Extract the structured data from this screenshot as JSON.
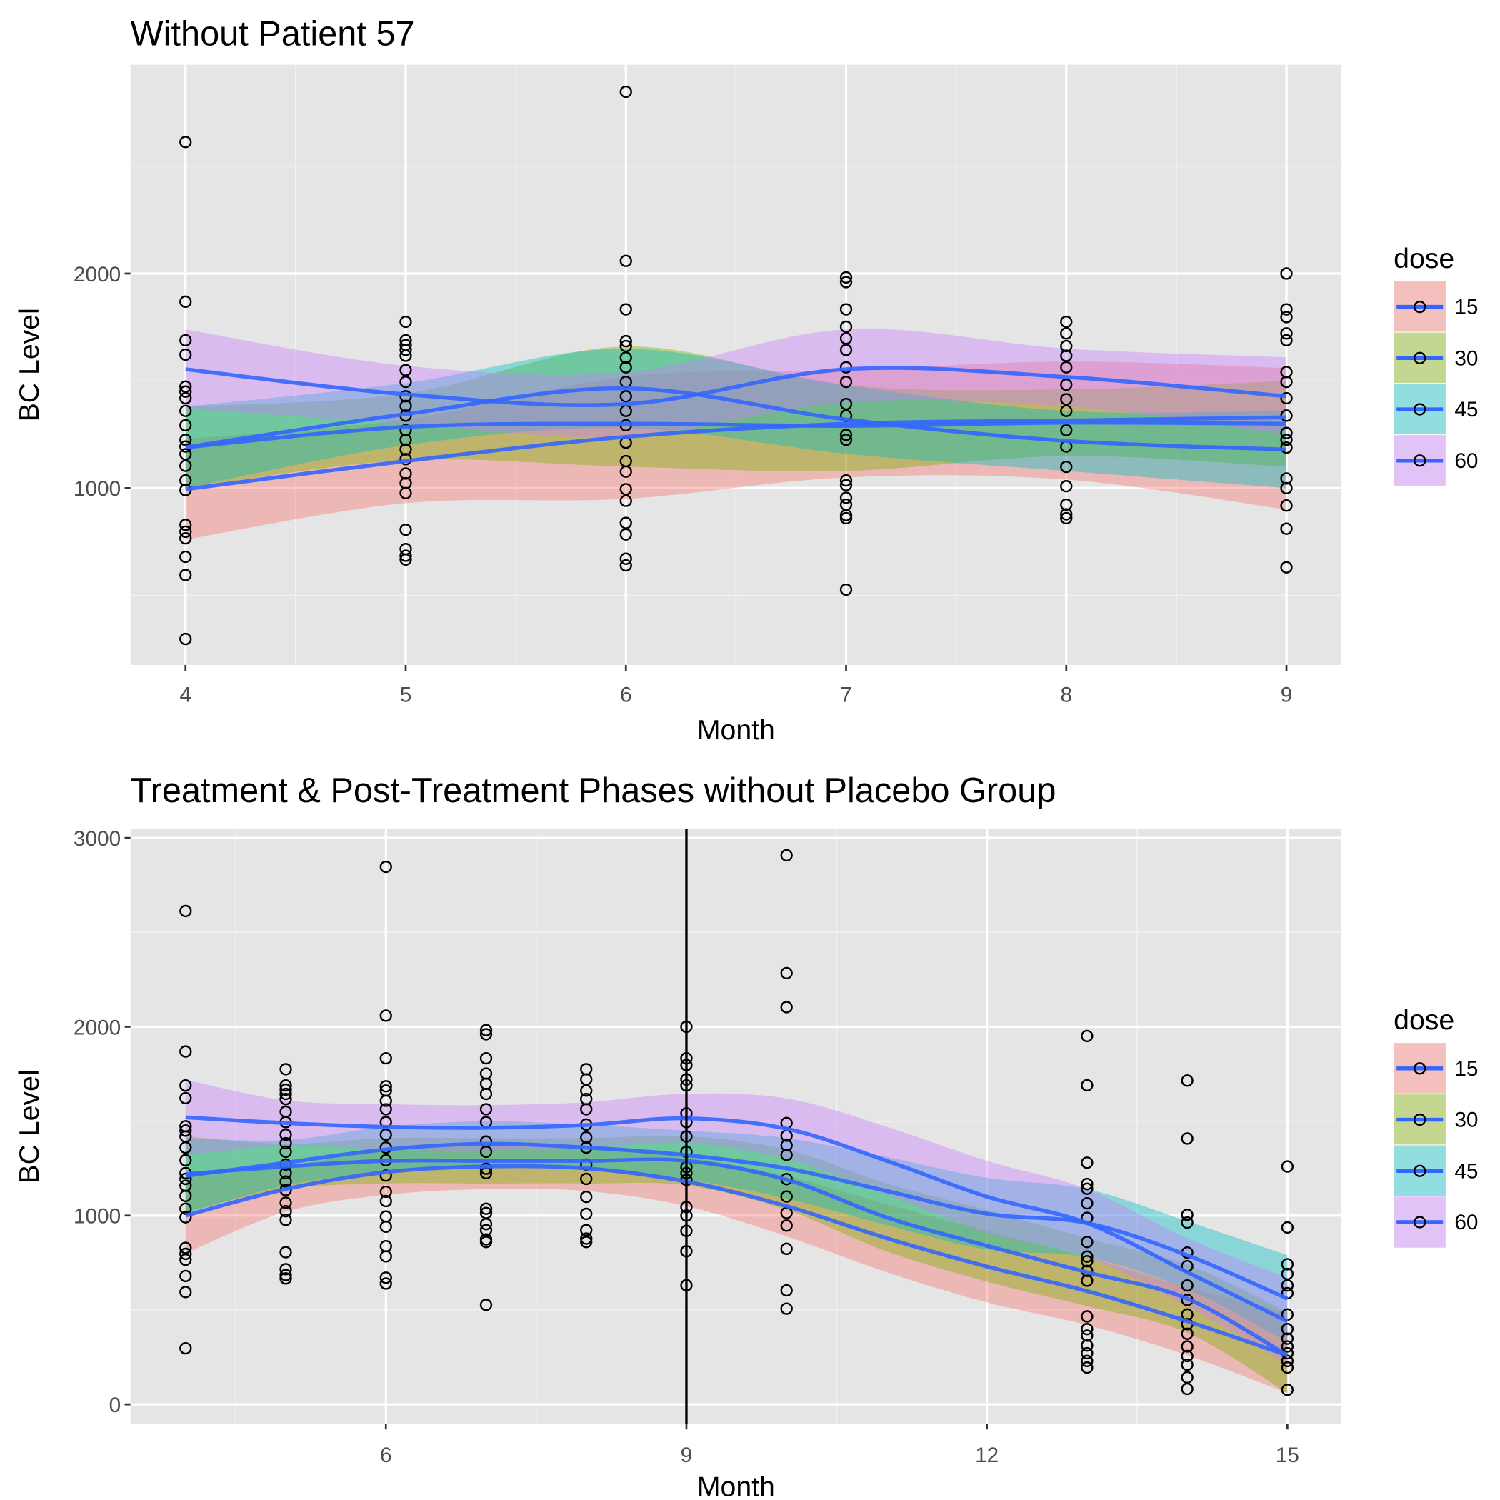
{
  "chart_data": [
    {
      "type": "scatter-smooth",
      "title": "Without Patient 57",
      "x_label": "Month",
      "y_label": "BC Level",
      "legend_title": "dose",
      "xlim": [
        3.75,
        9.25
      ],
      "xticks": [
        4,
        5,
        6,
        7,
        8,
        9
      ],
      "ylim": [
        176,
        2973
      ],
      "yticks": [
        1000,
        2000
      ],
      "grid": true,
      "points": [
        {
          "x": 4,
          "y": [
            2613,
            1869,
            1689,
            1622,
            1473,
            1450,
            1419,
            1360,
            1293,
            1225,
            1194,
            1158,
            1104,
            1036,
            991,
            829,
            797,
            766,
            680,
            595,
            297
          ]
        },
        {
          "x": 5,
          "y": [
            1775,
            1689,
            1667,
            1644,
            1617,
            1550,
            1495,
            1428,
            1383,
            1338,
            1270,
            1225,
            1180,
            1135,
            1068,
            1023,
            977,
            806,
            716,
            685,
            667
          ]
        },
        {
          "x": 6,
          "y": [
            2847,
            2059,
            1833,
            1685,
            1662,
            1608,
            1563,
            1495,
            1428,
            1360,
            1293,
            1212,
            1126,
            1077,
            995,
            941,
            838,
            784,
            671,
            640
          ]
        },
        {
          "x": 7,
          "y": [
            1982,
            1960,
            1833,
            1752,
            1698,
            1644,
            1563,
            1495,
            1392,
            1338,
            1248,
            1225,
            1036,
            1014,
            955,
            923,
            874,
            860,
            527
          ]
        },
        {
          "x": 8,
          "y": [
            1775,
            1721,
            1662,
            1617,
            1563,
            1482,
            1414,
            1360,
            1270,
            1194,
            1099,
            1009,
            923,
            878,
            860
          ]
        },
        {
          "x": 9,
          "y": [
            2000,
            1833,
            1797,
            1721,
            1689,
            1541,
            1495,
            1419,
            1338,
            1257,
            1225,
            1189,
            1045,
            1000,
            919,
            811,
            631
          ]
        }
      ],
      "smooth_x": [
        4,
        5,
        6,
        7,
        8,
        9
      ],
      "series": [
        {
          "name": "15",
          "color": "#F8766D",
          "line_color": "#3366FF",
          "values": [
            995,
            1126,
            1239,
            1300,
            1315,
            1330
          ],
          "lower": [
            760,
            930,
            950,
            1050,
            1040,
            900
          ],
          "upper": [
            1230,
            1320,
            1520,
            1550,
            1590,
            1560
          ]
        },
        {
          "name": "30",
          "color": "#7CAE00",
          "line_color": "#3366FF",
          "values": [
            1190,
            1285,
            1300,
            1290,
            1305,
            1300
          ],
          "lower": [
            1000,
            1130,
            1100,
            1080,
            1150,
            1100
          ],
          "upper": [
            1380,
            1440,
            1660,
            1480,
            1460,
            1500
          ]
        },
        {
          "name": "45",
          "color": "#00BFC4",
          "line_color": "#3366FF",
          "values": [
            1190,
            1345,
            1465,
            1320,
            1220,
            1180
          ],
          "lower": [
            1000,
            1200,
            1280,
            1160,
            1080,
            1000
          ],
          "upper": [
            1380,
            1490,
            1650,
            1480,
            1360,
            1360
          ]
        },
        {
          "name": "60",
          "color": "#C77CFF",
          "line_color": "#3366FF",
          "values": [
            1554,
            1437,
            1392,
            1554,
            1518,
            1428
          ],
          "lower": [
            1370,
            1300,
            1240,
            1400,
            1380,
            1250
          ],
          "upper": [
            1740,
            1570,
            1540,
            1740,
            1650,
            1610
          ]
        }
      ]
    },
    {
      "type": "scatter-smooth",
      "title": "Treatment & Post-Treatment Phases without Placebo Group",
      "x_label": "Month",
      "y_label": "BC Level",
      "legend_title": "dose",
      "xlim": [
        3.45,
        15.54
      ],
      "xticks": [
        6,
        9,
        12,
        15
      ],
      "ylim": [
        -102,
        3046
      ],
      "yticks": [
        0,
        1000,
        2000,
        3000
      ],
      "grid": true,
      "vline": 9,
      "points": [
        {
          "x": 4,
          "y": [
            2613,
            1869,
            1689,
            1622,
            1473,
            1450,
            1419,
            1360,
            1293,
            1225,
            1194,
            1158,
            1104,
            1036,
            991,
            829,
            797,
            766,
            680,
            595,
            297
          ]
        },
        {
          "x": 5,
          "y": [
            1775,
            1689,
            1667,
            1644,
            1617,
            1550,
            1495,
            1428,
            1383,
            1338,
            1270,
            1225,
            1180,
            1135,
            1068,
            1023,
            977,
            806,
            716,
            685,
            667
          ]
        },
        {
          "x": 6,
          "y": [
            2847,
            2059,
            1833,
            1685,
            1662,
            1608,
            1563,
            1495,
            1428,
            1360,
            1293,
            1212,
            1126,
            1077,
            995,
            941,
            838,
            784,
            671,
            640
          ]
        },
        {
          "x": 7,
          "y": [
            1982,
            1960,
            1833,
            1752,
            1698,
            1644,
            1563,
            1495,
            1392,
            1338,
            1248,
            1225,
            1036,
            1014,
            955,
            923,
            874,
            860,
            527
          ]
        },
        {
          "x": 8,
          "y": [
            1775,
            1721,
            1662,
            1617,
            1563,
            1482,
            1414,
            1360,
            1270,
            1194,
            1099,
            1009,
            923,
            878,
            860
          ]
        },
        {
          "x": 9,
          "y": [
            2000,
            1833,
            1797,
            1721,
            1689,
            1541,
            1495,
            1419,
            1338,
            1257,
            1225,
            1189,
            1045,
            1000,
            919,
            811,
            631
          ]
        },
        {
          "x": 10,
          "y": [
            2908,
            2284,
            2104,
            1490,
            1423,
            1372,
            1321,
            1193,
            1101,
            1014,
            947,
            824,
            604,
            507
          ]
        },
        {
          "x": 13,
          "y": [
            1951,
            1690,
            1280,
            1167,
            1142,
            1065,
            988,
            860,
            783,
            758,
            707,
            655,
            466,
            399,
            364,
            312,
            271,
            230,
            195
          ]
        },
        {
          "x": 14,
          "y": [
            1715,
            1408,
            1004,
            963,
            804,
            732,
            630,
            553,
            476,
            425,
            374,
            307,
            256,
            210,
            143,
            82
          ]
        },
        {
          "x": 15,
          "y": [
            1260,
            937,
            742,
            691,
            630,
            589,
            476,
            399,
            348,
            307,
            271,
            230,
            195,
            77
          ]
        }
      ],
      "smooth_x": [
        4,
        5,
        6,
        7,
        8,
        9,
        10,
        11,
        12,
        13,
        14,
        15
      ],
      "series": [
        {
          "name": "15",
          "color": "#F8766D",
          "line_color": "#3366FF",
          "values": [
            1000,
            1140,
            1230,
            1260,
            1250,
            1180,
            1050,
            880,
            730,
            600,
            440,
            260
          ],
          "lower": [
            800,
            1020,
            1110,
            1140,
            1130,
            1050,
            890,
            700,
            540,
            420,
            260,
            60
          ],
          "upper": [
            1200,
            1260,
            1350,
            1380,
            1370,
            1310,
            1210,
            1060,
            920,
            780,
            620,
            490
          ]
        },
        {
          "name": "30",
          "color": "#7CAE00",
          "line_color": "#3366FF",
          "values": [
            1220,
            1260,
            1290,
            1290,
            1290,
            1290,
            1190,
            990,
            840,
            700,
            560,
            260
          ],
          "lower": [
            1020,
            1140,
            1170,
            1170,
            1170,
            1160,
            1030,
            810,
            650,
            520,
            380,
            60
          ],
          "upper": [
            1420,
            1380,
            1410,
            1410,
            1410,
            1420,
            1350,
            1170,
            1030,
            880,
            740,
            490
          ]
        },
        {
          "name": "45",
          "color": "#00BFC4",
          "line_color": "#3366FF",
          "values": [
            1210,
            1280,
            1350,
            1380,
            1360,
            1320,
            1250,
            1130,
            1010,
            960,
            790,
            560
          ],
          "lower": [
            1010,
            1160,
            1230,
            1260,
            1240,
            1190,
            1090,
            950,
            820,
            780,
            610,
            330
          ],
          "upper": [
            1410,
            1400,
            1470,
            1500,
            1480,
            1450,
            1410,
            1310,
            1200,
            1140,
            970,
            790
          ]
        },
        {
          "name": "60",
          "color": "#C77CFF",
          "line_color": "#3366FF",
          "values": [
            1520,
            1490,
            1470,
            1465,
            1480,
            1515,
            1460,
            1290,
            1100,
            960,
            700,
            440
          ],
          "lower": [
            1320,
            1370,
            1350,
            1345,
            1360,
            1385,
            1300,
            1110,
            910,
            780,
            520,
            210
          ],
          "upper": [
            1720,
            1610,
            1590,
            1585,
            1600,
            1645,
            1620,
            1470,
            1290,
            1140,
            880,
            670
          ]
        }
      ]
    }
  ]
}
